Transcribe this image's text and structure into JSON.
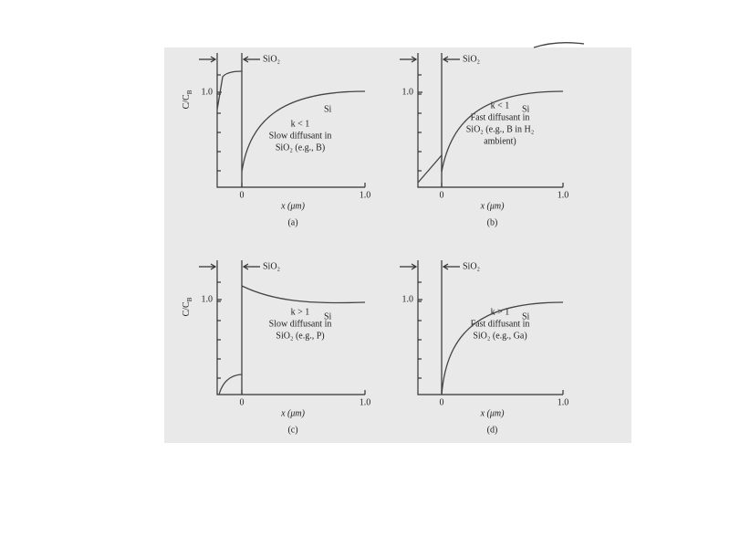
{
  "panels": [
    {
      "label": "(a)",
      "interface_label": "SiO₂",
      "region_label": "Si",
      "ylabel": {
        "main": "C/C",
        "sub": "B"
      },
      "ytick": "1.0",
      "xticks": [
        "0",
        "1.0"
      ],
      "xlabel": "x (μm)",
      "notes": [
        "k < 1",
        "Slow diffusant in",
        "SiO₂ (e.g., B)"
      ]
    },
    {
      "label": "(b)",
      "interface_label": "SiO₂",
      "region_label": "Si",
      "ytick": "1.0",
      "xticks": [
        "0",
        "1.0"
      ],
      "xlabel": "x (μm)",
      "notes": [
        "k < 1",
        "Fast diffusant in",
        "SiO₂ (e.g., B in H₂",
        "ambient)"
      ]
    },
    {
      "label": "(c)",
      "interface_label": "SiO₂",
      "region_label": "Si",
      "ylabel": {
        "main": "C/C",
        "sub": "B"
      },
      "ytick": "1.0",
      "xticks": [
        "0",
        "1.0"
      ],
      "xlabel": "x (μm)",
      "notes": [
        "k > 1",
        "Slow diffusant in",
        "SiO₂ (e.g., P)"
      ]
    },
    {
      "label": "(d)",
      "interface_label": "SiO₂",
      "region_label": "Si",
      "ytick": "1.0",
      "xticks": [
        "0",
        "1.0"
      ],
      "xlabel": "x (μm)",
      "notes": [
        "k > 1",
        "Fast diffusant in",
        "SiO₂ (e.g., Ga)"
      ]
    }
  ]
}
